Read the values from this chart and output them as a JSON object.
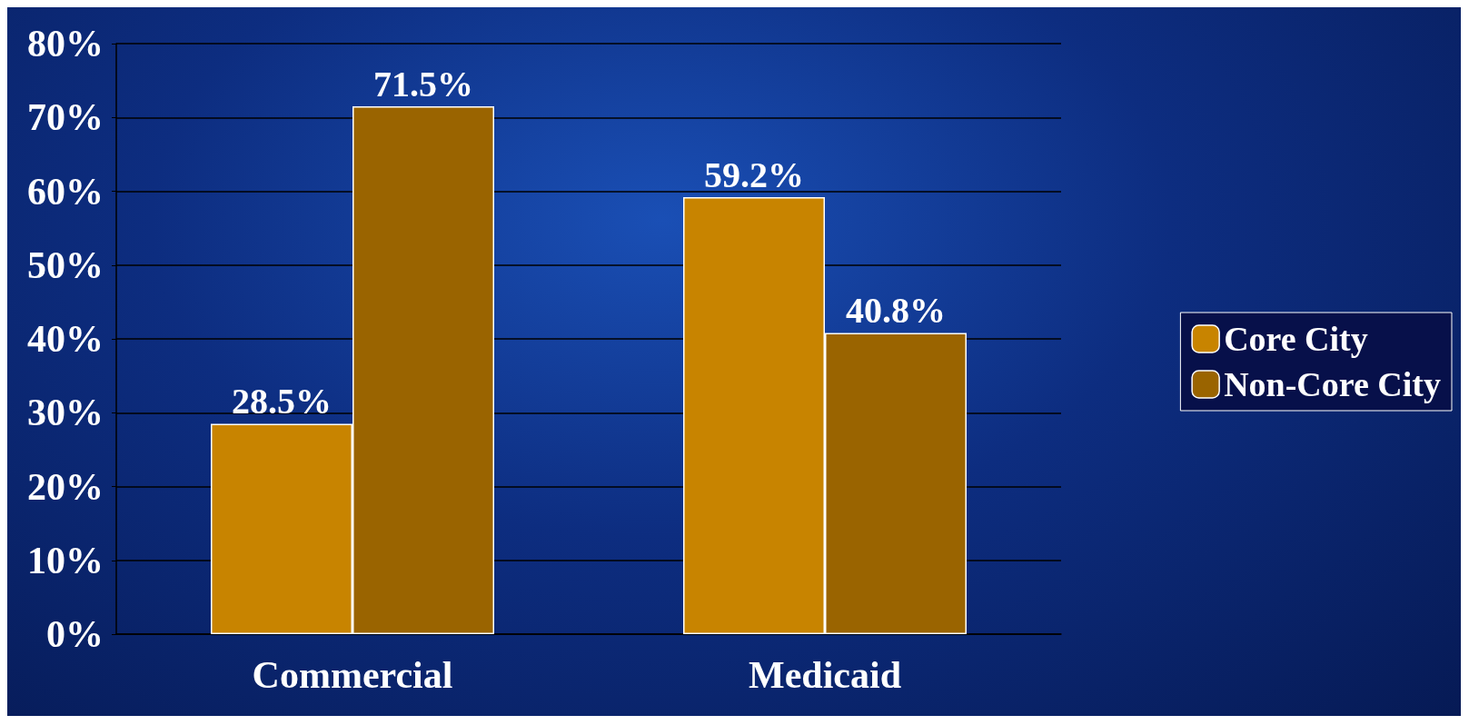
{
  "chart_data": {
    "type": "bar",
    "categories": [
      "Commercial",
      "Medicaid"
    ],
    "series": [
      {
        "name": "Core City",
        "color": "#c88400",
        "values": [
          28.5,
          59.2
        ],
        "value_labels": [
          "28.5%",
          "59.2%"
        ]
      },
      {
        "name": "Non-Core City",
        "color": "#9a6400",
        "values": [
          71.5,
          40.8
        ],
        "value_labels": [
          "71.5%",
          "40.8%"
        ]
      }
    ],
    "ylim": [
      0,
      80
    ],
    "yticks": [
      {
        "value": 0,
        "label": "0%"
      },
      {
        "value": 10,
        "label": "10%"
      },
      {
        "value": 20,
        "label": "20%"
      },
      {
        "value": 30,
        "label": "30%"
      },
      {
        "value": 40,
        "label": "40%"
      },
      {
        "value": 50,
        "label": "50%"
      },
      {
        "value": 60,
        "label": "60%"
      },
      {
        "value": 70,
        "label": "70%"
      },
      {
        "value": 80,
        "label": "80%"
      }
    ],
    "grid": "y",
    "legend": "right"
  }
}
